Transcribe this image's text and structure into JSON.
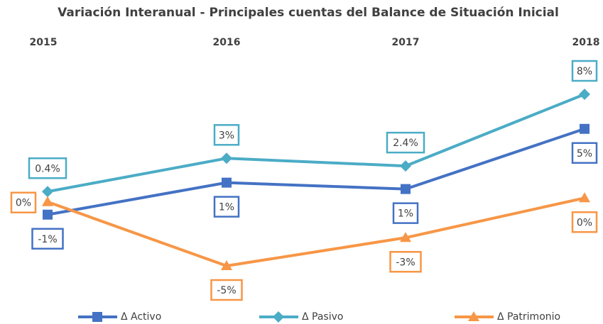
{
  "chart_data": {
    "type": "line",
    "title": "Variación Interanual - Principales cuentas del Balance de Situación Inicial",
    "categories": [
      "2015",
      "2016",
      "2017",
      "2018"
    ],
    "series": [
      {
        "name": "Δ Activo",
        "color": "#4472c4",
        "marker": "square",
        "values": [
          -1.4,
          1.1,
          0.6,
          5.3
        ],
        "value_labels": [
          "-1%",
          "1%",
          "1%",
          "5%"
        ]
      },
      {
        "name": "Δ Pasivo",
        "color": "#4bacc6",
        "marker": "diamond",
        "values": [
          0.4,
          3.0,
          2.4,
          8.0
        ],
        "value_labels": [
          "0.4%",
          "3%",
          "2.4%",
          "8%"
        ]
      },
      {
        "name": "Δ Patrimonio",
        "color": "#f79646",
        "marker": "triangle",
        "values": [
          -0.4,
          -5.4,
          -3.2,
          -0.1
        ],
        "value_labels": [
          "0%",
          "-5%",
          "-3%",
          "0%"
        ]
      }
    ],
    "legend": "bottom"
  }
}
